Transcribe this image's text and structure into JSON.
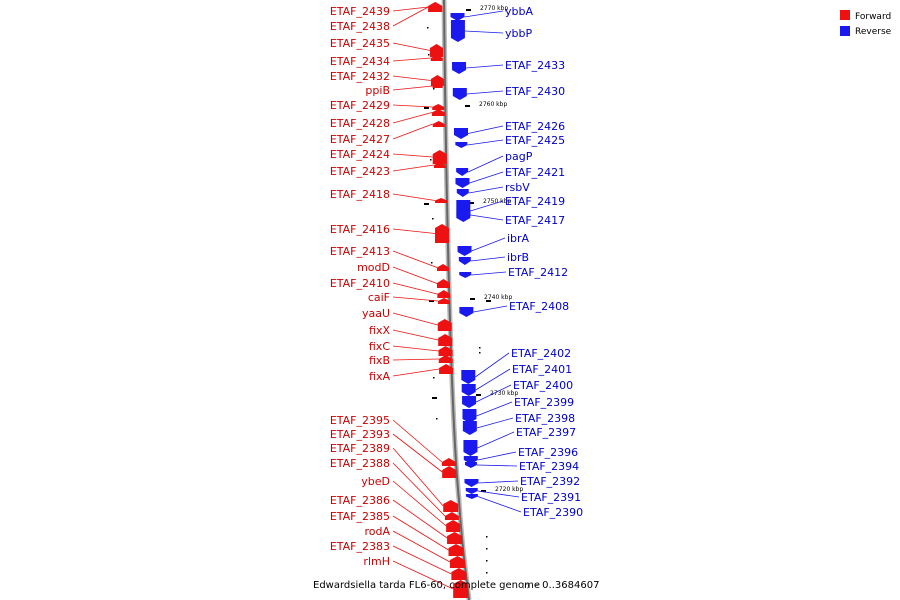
{
  "caption": "Edwardsiella tarda FL6-60, complete genome",
  "caption_range": "– 0..3684607",
  "caption_sub": "(r)",
  "legend": {
    "forward": {
      "label": "Forward",
      "color": "#ee1111"
    },
    "reverse": {
      "label": "Reverse",
      "color": "#1a1aee"
    }
  },
  "ticks": [
    "2770 kbp",
    "2760 kbp",
    "2750 kbp",
    "2740 kbp",
    "2730 kbp",
    "2720 kbp"
  ],
  "forward_genes": [
    "ETAF_2439",
    "ETAF_2438",
    "ETAF_2435",
    "ETAF_2434",
    "ETAF_2432",
    "ppiB",
    "ETAF_2429",
    "ETAF_2428",
    "ETAF_2427",
    "ETAF_2424",
    "ETAF_2423",
    "ETAF_2418",
    "ETAF_2416",
    "ETAF_2413",
    "modD",
    "ETAF_2410",
    "caiF",
    "yaaU",
    "fixX",
    "fixC",
    "fixB",
    "fixA",
    "ETAF_2395",
    "ETAF_2393",
    "ETAF_2389",
    "ETAF_2388",
    "ybeD",
    "ETAF_2386",
    "ETAF_2385",
    "rodA",
    "ETAF_2383",
    "rlmH"
  ],
  "reverse_genes": [
    "ybbA",
    "ybbP",
    "ETAF_2433",
    "ETAF_2430",
    "ETAF_2426",
    "ETAF_2425",
    "pagP",
    "ETAF_2421",
    "rsbV",
    "ETAF_2419",
    "ETAF_2417",
    "ibrA",
    "ibrB",
    "ETAF_2412",
    "ETAF_2408",
    "ETAF_2402",
    "ETAF_2401",
    "ETAF_2400",
    "ETAF_2399",
    "ETAF_2398",
    "ETAF_2397",
    "ETAF_2396",
    "ETAF_2394",
    "ETAF_2392",
    "ETAF_2391",
    "ETAF_2390"
  ]
}
